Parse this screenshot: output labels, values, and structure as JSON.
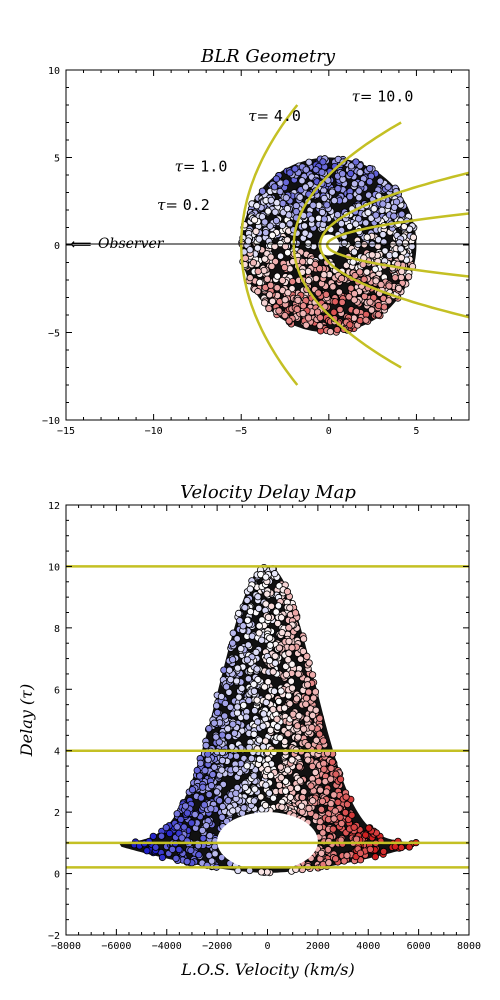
{
  "chart_data": [
    {
      "type": "scatter",
      "title": "BLR  Geometry",
      "xlabel": "",
      "ylabel": "",
      "xlim": [
        -15,
        8
      ],
      "ylim": [
        -10,
        10
      ],
      "xticks": [
        -15,
        -10,
        -5,
        0,
        5
      ],
      "yticks": [
        -10,
        -5,
        0,
        5,
        10
      ],
      "observer_label": "Observer",
      "cloud": {
        "center": [
          0,
          0
        ],
        "radius": 5,
        "hole_radius": 0.6
      },
      "iso_delay_curves": [
        {
          "label": "τ= 0.2",
          "tau": 0.2
        },
        {
          "label": "τ= 1.0",
          "tau": 1.0
        },
        {
          "label": "τ= 4.0",
          "tau": 4.0
        },
        {
          "label": "τ= 10.0",
          "tau": 10.0
        }
      ],
      "colors": {
        "approaching": "#2020c8",
        "receding": "#d02020",
        "curve": "#c4c024"
      }
    },
    {
      "type": "scatter",
      "title": "Velocity  Delay  Map",
      "xlabel": "L.O.S.  Velocity  (km/s)",
      "ylabel": "Delay  (τ)",
      "xlim": [
        -8000,
        8000
      ],
      "ylim": [
        -2,
        12
      ],
      "xticks": [
        -8000,
        -6000,
        -4000,
        -2000,
        0,
        2000,
        4000,
        6000,
        8000
      ],
      "yticks": [
        -2,
        0,
        2,
        4,
        6,
        8,
        10,
        12
      ],
      "horizontal_lines": [
        10.0,
        4.0,
        1.0,
        0.2
      ],
      "envelope": {
        "max_velocity": 6000,
        "max_delay": 10
      }
    }
  ]
}
